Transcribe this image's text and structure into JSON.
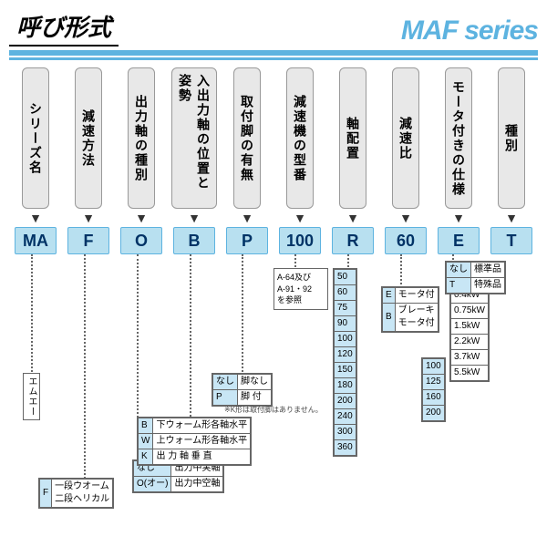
{
  "header": {
    "title": "呼び形式",
    "series": "MAF series"
  },
  "columns": [
    {
      "label": "シリーズ名",
      "code": "MA"
    },
    {
      "label": "減速方法",
      "code": "F"
    },
    {
      "label": "出力軸の種別",
      "code": "O"
    },
    {
      "label": "入出力軸の位置と姿勢",
      "code": "B"
    },
    {
      "label": "取付脚の有無",
      "code": "P"
    },
    {
      "label": "減速機の型番",
      "code": "100"
    },
    {
      "label": "軸配置",
      "code": "R"
    },
    {
      "label": "減速比",
      "code": "60"
    },
    {
      "label": "モータ付きの仕様",
      "code": "E"
    },
    {
      "label": "種別",
      "code": "T"
    }
  ],
  "ma_box": "エムエー",
  "f_box": [
    [
      "F",
      "一段ウオーム\n二段ヘリカル"
    ]
  ],
  "o_box": [
    [
      "なし",
      "出力中実軸"
    ],
    [
      "O(オー)",
      "出力中空軸"
    ]
  ],
  "b_box": [
    [
      "B",
      "下ウォーム形各軸水平"
    ],
    [
      "W",
      "上ウォーム形各軸水平"
    ],
    [
      "K",
      "出 力 軸 垂 直"
    ]
  ],
  "p_box": [
    [
      "なし",
      "脚なし"
    ],
    [
      "P",
      "脚 付"
    ]
  ],
  "p_note": "※K形は取付脚はありません。",
  "model_box": "A-64及び\nA-91・92\nを参照",
  "ratio_list": [
    "50",
    "60",
    "75",
    "90",
    "100",
    "120",
    "150",
    "180",
    "200",
    "240",
    "300",
    "360"
  ],
  "e_box": [
    [
      "E",
      "モータ付"
    ],
    [
      "B",
      "ブレーキ\nモータ付"
    ]
  ],
  "kw_list": [
    "0.4kW",
    "0.75kW",
    "1.5kW",
    "2.2kW",
    "3.7kW",
    "5.5kW"
  ],
  "size_list": [
    "100",
    "125",
    "160",
    "200"
  ],
  "t_box": [
    [
      "なし",
      "標準品"
    ],
    [
      "T",
      "特殊品"
    ]
  ],
  "colors": {
    "accent": "#5db3e0",
    "code_bg": "#b8e0f0",
    "col_bg": "#e8e8e8"
  }
}
